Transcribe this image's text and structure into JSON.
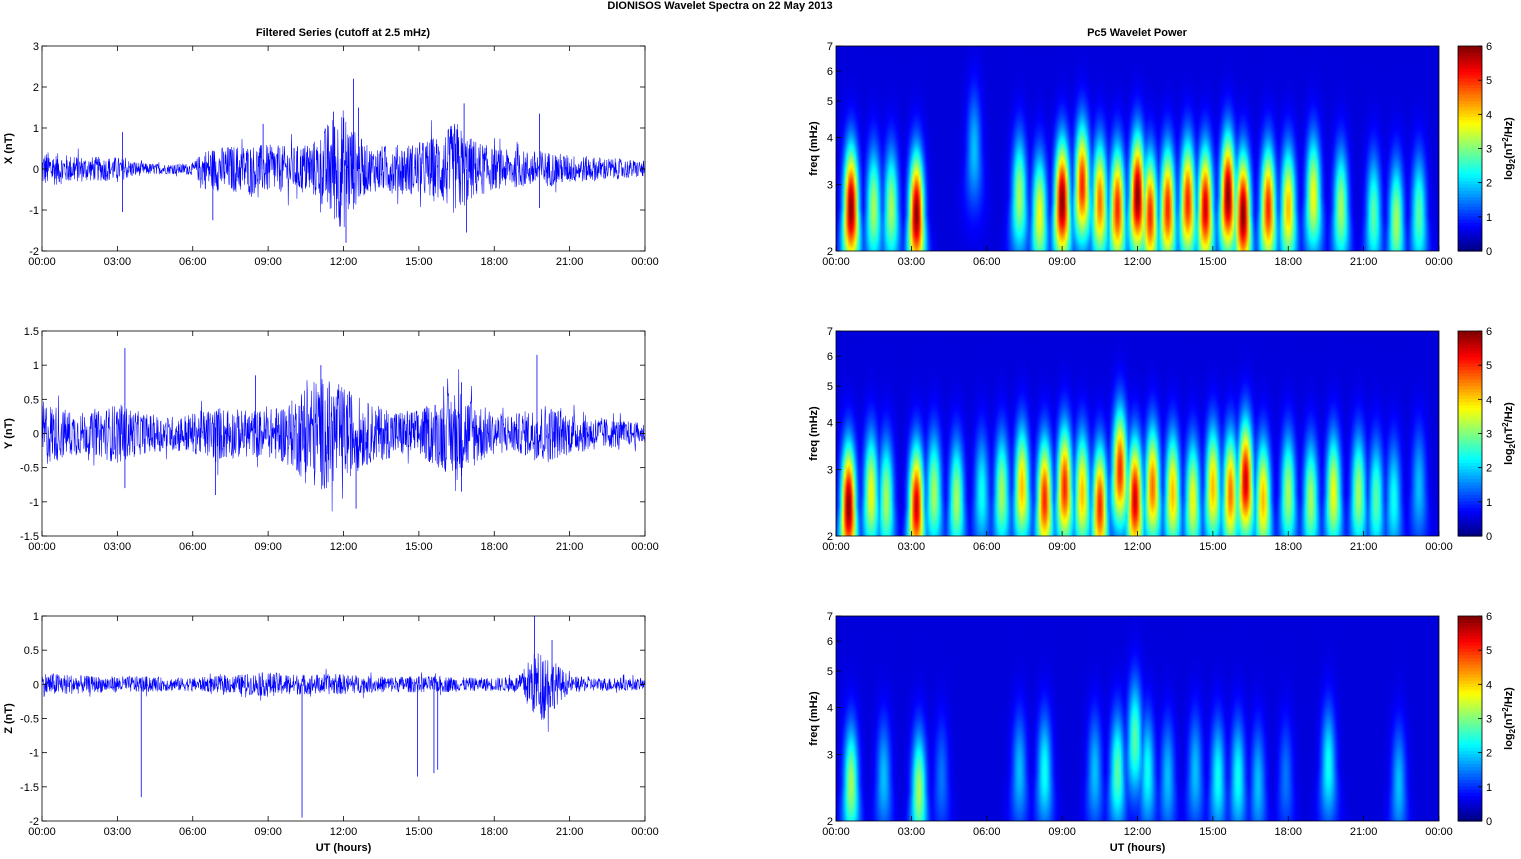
{
  "figure": {
    "title": "DIONISOS Wavelet Spectra on 22 May      2013",
    "left_title": "Filtered Series (cutoff at 2.5 mHz)",
    "right_title": "Pc5 Wavelet Power"
  },
  "chart_data": [
    {
      "type": "line",
      "component": "X",
      "ylabel": "X (nT)",
      "xlabel": "",
      "xlim": [
        0,
        24
      ],
      "ylim": [
        -2,
        3
      ],
      "xticks": [
        "00:00",
        "03:00",
        "06:00",
        "09:00",
        "12:00",
        "15:00",
        "18:00",
        "21:00",
        "00:00"
      ],
      "yticks": [
        "-2",
        "-1",
        "0",
        "1",
        "2",
        "3"
      ],
      "line_color": "#0000ff",
      "grid": false,
      "envelope_hours": [
        0,
        1,
        2,
        3,
        4,
        5,
        6,
        6.5,
        7,
        8,
        9,
        10,
        11,
        11.5,
        12,
        12.5,
        13,
        14,
        15,
        16,
        16.5,
        17,
        18,
        19,
        20,
        21,
        22,
        23,
        24
      ],
      "envelope_amp_nT": [
        0.45,
        0.35,
        0.3,
        0.3,
        0.15,
        0.12,
        0.15,
        0.5,
        0.55,
        0.6,
        0.6,
        0.55,
        0.75,
        1.3,
        1.5,
        0.9,
        0.55,
        0.6,
        0.65,
        0.9,
        1.2,
        0.8,
        0.5,
        0.45,
        0.45,
        0.35,
        0.3,
        0.25,
        0.2
      ],
      "spikes": [
        {
          "t": 3.2,
          "v": 0.9
        },
        {
          "t": 3.2,
          "v": -1.05
        },
        {
          "t": 6.8,
          "v": -1.25
        },
        {
          "t": 8.8,
          "v": 1.1
        },
        {
          "t": 11.6,
          "v": 1.4
        },
        {
          "t": 12.1,
          "v": -1.8
        },
        {
          "t": 12.4,
          "v": 2.2
        },
        {
          "t": 12.6,
          "v": 1.5
        },
        {
          "t": 16.8,
          "v": 1.6
        },
        {
          "t": 16.9,
          "v": -1.55
        },
        {
          "t": 19.8,
          "v": 1.35
        },
        {
          "t": 19.8,
          "v": -0.95
        }
      ]
    },
    {
      "type": "line",
      "component": "Y",
      "ylabel": "Y (nT)",
      "xlabel": "",
      "xlim": [
        0,
        24
      ],
      "ylim": [
        -1.5,
        1.5
      ],
      "xticks": [
        "00:00",
        "03:00",
        "06:00",
        "09:00",
        "12:00",
        "15:00",
        "18:00",
        "21:00",
        "00:00"
      ],
      "yticks": [
        "-1.5",
        "-1",
        "-0.5",
        "0",
        "0.5",
        "1",
        "1.5"
      ],
      "line_color": "#0000ff",
      "grid": false,
      "envelope_hours": [
        0,
        1,
        2,
        3,
        4,
        5,
        6,
        7,
        8,
        9,
        10,
        10.5,
        11,
        12,
        13,
        14,
        15,
        16,
        16.5,
        17,
        18,
        19,
        20,
        21,
        22,
        23,
        24
      ],
      "envelope_amp_nT": [
        0.5,
        0.35,
        0.3,
        0.45,
        0.3,
        0.25,
        0.3,
        0.4,
        0.35,
        0.35,
        0.5,
        0.75,
        0.85,
        0.7,
        0.45,
        0.35,
        0.35,
        0.55,
        0.7,
        0.55,
        0.3,
        0.3,
        0.45,
        0.3,
        0.25,
        0.2,
        0.15
      ],
      "spikes": [
        {
          "t": 3.3,
          "v": 1.25
        },
        {
          "t": 3.3,
          "v": -0.8
        },
        {
          "t": 6.9,
          "v": -0.9
        },
        {
          "t": 8.5,
          "v": 0.85
        },
        {
          "t": 11.1,
          "v": 1.0
        },
        {
          "t": 12.5,
          "v": -1.1
        },
        {
          "t": 16.7,
          "v": 0.75
        },
        {
          "t": 16.7,
          "v": -0.85
        },
        {
          "t": 19.7,
          "v": 1.15
        }
      ]
    },
    {
      "type": "line",
      "component": "Z",
      "ylabel": "Z (nT)",
      "xlabel": "UT (hours)",
      "xlim": [
        0,
        24
      ],
      "ylim": [
        -2,
        1
      ],
      "xticks": [
        "00:00",
        "03:00",
        "06:00",
        "09:00",
        "12:00",
        "15:00",
        "18:00",
        "21:00",
        "00:00"
      ],
      "yticks": [
        "-2",
        "-1.5",
        "-1",
        "-0.5",
        "0",
        "0.5",
        "1"
      ],
      "line_color": "#0000ff",
      "grid": false,
      "envelope_hours": [
        0,
        1,
        2,
        3,
        4,
        5,
        6,
        7,
        8,
        9,
        10,
        11,
        12,
        13,
        14,
        15,
        16,
        17,
        18,
        19,
        19.5,
        20,
        20.5,
        21,
        22,
        23,
        24
      ],
      "envelope_amp_nT": [
        0.18,
        0.15,
        0.12,
        0.12,
        0.12,
        0.1,
        0.1,
        0.12,
        0.15,
        0.18,
        0.15,
        0.15,
        0.15,
        0.12,
        0.12,
        0.12,
        0.12,
        0.1,
        0.1,
        0.12,
        0.45,
        0.55,
        0.3,
        0.12,
        0.1,
        0.1,
        0.08
      ],
      "spikes": [
        {
          "t": 3.95,
          "v": -1.65
        },
        {
          "t": 10.35,
          "v": -1.95
        },
        {
          "t": 14.95,
          "v": -1.35
        },
        {
          "t": 15.6,
          "v": -1.3
        },
        {
          "t": 15.75,
          "v": -1.25
        },
        {
          "t": 19.6,
          "v": 1.0
        },
        {
          "t": 20.3,
          "v": 0.65
        }
      ]
    },
    {
      "type": "heatmap",
      "component": "X",
      "ylabel": "freq (mHz)",
      "xlabel": "",
      "xlim": [
        0,
        24
      ],
      "ylim": [
        2,
        7
      ],
      "y_scale": "log",
      "xticks": [
        "00:00",
        "03:00",
        "06:00",
        "09:00",
        "12:00",
        "15:00",
        "18:00",
        "21:00",
        "00:00"
      ],
      "yticks": [
        "2",
        "3",
        "4",
        "5",
        "6",
        "7"
      ],
      "colorbar": {
        "label": "log2(nT2/Hz)",
        "range": [
          0,
          6
        ],
        "ticks": [
          "0",
          "1",
          "2",
          "3",
          "4",
          "5",
          "6"
        ],
        "colormap": "jet"
      },
      "blobs": [
        {
          "t": 0.6,
          "f": 2.6,
          "p": 6
        },
        {
          "t": 1.5,
          "f": 2.6,
          "p": 3
        },
        {
          "t": 2.2,
          "f": 2.6,
          "p": 3
        },
        {
          "t": 3.2,
          "f": 2.5,
          "p": 6
        },
        {
          "t": 5.5,
          "f": 3.7,
          "p": 1.5
        },
        {
          "t": 7.3,
          "f": 2.8,
          "p": 3
        },
        {
          "t": 8.1,
          "f": 2.5,
          "p": 3.5
        },
        {
          "t": 9.0,
          "f": 2.7,
          "p": 6
        },
        {
          "t": 9.8,
          "f": 3.0,
          "p": 5
        },
        {
          "t": 10.5,
          "f": 2.7,
          "p": 4.5
        },
        {
          "t": 11.2,
          "f": 2.6,
          "p": 5
        },
        {
          "t": 12.0,
          "f": 2.8,
          "p": 6
        },
        {
          "t": 12.5,
          "f": 2.5,
          "p": 5
        },
        {
          "t": 13.2,
          "f": 2.6,
          "p": 5
        },
        {
          "t": 14.0,
          "f": 2.7,
          "p": 5
        },
        {
          "t": 14.7,
          "f": 2.6,
          "p": 5.5
        },
        {
          "t": 15.6,
          "f": 2.8,
          "p": 6
        },
        {
          "t": 16.2,
          "f": 2.5,
          "p": 6
        },
        {
          "t": 17.2,
          "f": 2.6,
          "p": 5
        },
        {
          "t": 18.0,
          "f": 2.6,
          "p": 4
        },
        {
          "t": 19.0,
          "f": 2.8,
          "p": 3.5
        },
        {
          "t": 20.1,
          "f": 2.6,
          "p": 3
        },
        {
          "t": 21.4,
          "f": 2.5,
          "p": 2.5
        },
        {
          "t": 22.3,
          "f": 2.4,
          "p": 3
        },
        {
          "t": 23.2,
          "f": 2.5,
          "p": 2.5
        }
      ]
    },
    {
      "type": "heatmap",
      "component": "Y",
      "ylabel": "freq (mHz)",
      "xlabel": "",
      "xlim": [
        0,
        24
      ],
      "ylim": [
        2,
        7
      ],
      "y_scale": "log",
      "xticks": [
        "00:00",
        "03:00",
        "06:00",
        "09:00",
        "12:00",
        "15:00",
        "18:00",
        "21:00",
        "00:00"
      ],
      "yticks": [
        "2",
        "3",
        "4",
        "5",
        "6",
        "7"
      ],
      "colorbar": {
        "label": "log2(nT2/Hz)",
        "range": [
          0,
          6
        ],
        "ticks": [
          "0",
          "1",
          "2",
          "3",
          "4",
          "5",
          "6"
        ],
        "colormap": "jet"
      },
      "blobs": [
        {
          "t": 0.5,
          "f": 2.4,
          "p": 6
        },
        {
          "t": 1.4,
          "f": 2.6,
          "p": 3.5
        },
        {
          "t": 2.0,
          "f": 2.5,
          "p": 3
        },
        {
          "t": 3.2,
          "f": 2.4,
          "p": 5.5
        },
        {
          "t": 3.9,
          "f": 2.6,
          "p": 3
        },
        {
          "t": 4.8,
          "f": 2.5,
          "p": 3
        },
        {
          "t": 5.8,
          "f": 2.6,
          "p": 2
        },
        {
          "t": 6.6,
          "f": 2.6,
          "p": 3
        },
        {
          "t": 7.4,
          "f": 2.7,
          "p": 4
        },
        {
          "t": 8.3,
          "f": 2.5,
          "p": 5
        },
        {
          "t": 9.1,
          "f": 2.7,
          "p": 5
        },
        {
          "t": 9.8,
          "f": 2.6,
          "p": 4
        },
        {
          "t": 10.5,
          "f": 2.4,
          "p": 5
        },
        {
          "t": 11.3,
          "f": 3.0,
          "p": 5
        },
        {
          "t": 11.9,
          "f": 2.5,
          "p": 5.5
        },
        {
          "t": 12.6,
          "f": 2.7,
          "p": 4.5
        },
        {
          "t": 13.4,
          "f": 2.6,
          "p": 4
        },
        {
          "t": 14.2,
          "f": 2.5,
          "p": 3.5
        },
        {
          "t": 15.0,
          "f": 2.7,
          "p": 4
        },
        {
          "t": 15.7,
          "f": 2.6,
          "p": 4.5
        },
        {
          "t": 16.3,
          "f": 2.8,
          "p": 5.5
        },
        {
          "t": 17.0,
          "f": 2.5,
          "p": 4
        },
        {
          "t": 18.0,
          "f": 2.6,
          "p": 3
        },
        {
          "t": 18.9,
          "f": 2.5,
          "p": 3
        },
        {
          "t": 19.8,
          "f": 2.6,
          "p": 3.5
        },
        {
          "t": 20.8,
          "f": 2.6,
          "p": 3
        },
        {
          "t": 21.5,
          "f": 2.5,
          "p": 2.5
        },
        {
          "t": 22.2,
          "f": 2.5,
          "p": 2
        },
        {
          "t": 23.2,
          "f": 2.7,
          "p": 1.5
        }
      ]
    },
    {
      "type": "heatmap",
      "component": "Z",
      "ylabel": "freq (mHz)",
      "xlabel": "UT (hours)",
      "xlim": [
        0,
        24
      ],
      "ylim": [
        2,
        7
      ],
      "y_scale": "log",
      "xticks": [
        "00:00",
        "03:00",
        "06:00",
        "09:00",
        "12:00",
        "15:00",
        "18:00",
        "21:00",
        "00:00"
      ],
      "yticks": [
        "2",
        "3",
        "4",
        "5",
        "6",
        "7"
      ],
      "colorbar": {
        "label": "log2(nT2/Hz)",
        "range": [
          0,
          6
        ],
        "ticks": [
          "0",
          "1",
          "2",
          "3",
          "4",
          "5",
          "6"
        ],
        "colormap": "jet"
      },
      "blobs": [
        {
          "t": 0.6,
          "f": 2.5,
          "p": 3
        },
        {
          "t": 1.9,
          "f": 2.6,
          "p": 1.5
        },
        {
          "t": 3.3,
          "f": 2.4,
          "p": 3
        },
        {
          "t": 4.2,
          "f": 2.6,
          "p": 1
        },
        {
          "t": 7.3,
          "f": 2.7,
          "p": 1.5
        },
        {
          "t": 8.3,
          "f": 2.7,
          "p": 2
        },
        {
          "t": 10.3,
          "f": 2.7,
          "p": 1.5
        },
        {
          "t": 11.2,
          "f": 2.7,
          "p": 2.5
        },
        {
          "t": 11.9,
          "f": 3.3,
          "p": 2.5
        },
        {
          "t": 12.4,
          "f": 2.7,
          "p": 2
        },
        {
          "t": 13.2,
          "f": 2.6,
          "p": 1.5
        },
        {
          "t": 14.3,
          "f": 2.7,
          "p": 1.5
        },
        {
          "t": 15.2,
          "f": 2.6,
          "p": 2
        },
        {
          "t": 16.0,
          "f": 2.6,
          "p": 2
        },
        {
          "t": 16.8,
          "f": 2.5,
          "p": 1.5
        },
        {
          "t": 17.9,
          "f": 2.6,
          "p": 1
        },
        {
          "t": 19.6,
          "f": 2.8,
          "p": 2
        },
        {
          "t": 22.4,
          "f": 2.5,
          "p": 1.5
        }
      ]
    }
  ]
}
